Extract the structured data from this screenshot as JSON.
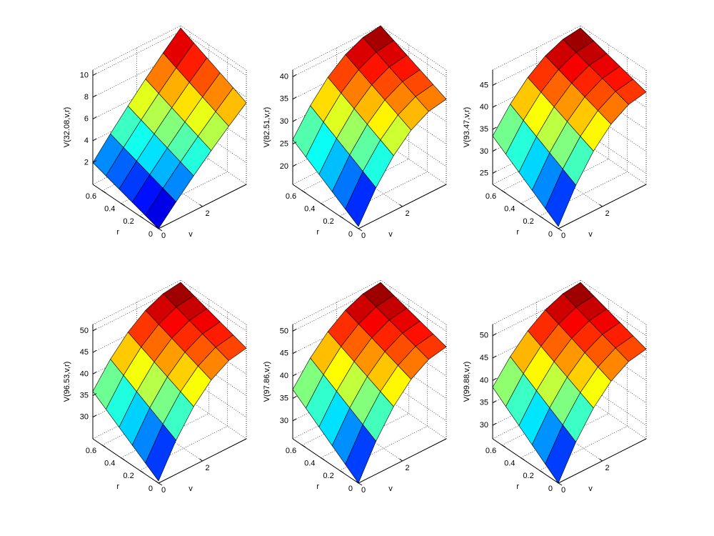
{
  "chart_data": [
    {
      "type": "surface",
      "zlabel": "V(32.08,v,r)",
      "xlabel": "v",
      "ylabel": "r",
      "colormap": "jet",
      "edgecolor": "#000000",
      "grid": true,
      "x": [
        0,
        0.8,
        1.6,
        2.4,
        3.2,
        4.0
      ],
      "y": [
        0,
        0.14,
        0.28,
        0.42,
        0.56,
        0.7
      ],
      "z": [
        [
          0,
          1.65,
          3.23,
          4.73,
          6.15,
          7.5
        ],
        [
          0.4,
          2.09,
          3.69,
          5.23,
          6.68,
          8.06
        ],
        [
          0.8,
          2.52,
          4.16,
          5.73,
          7.21,
          8.62
        ],
        [
          1.2,
          2.96,
          4.63,
          6.23,
          7.74,
          9.18
        ],
        [
          1.6,
          3.39,
          5.1,
          6.73,
          8.27,
          9.74
        ],
        [
          2,
          3.83,
          5.57,
          7.23,
          8.81,
          10.3
        ]
      ],
      "xlim": [
        0,
        4
      ],
      "ylim": [
        0,
        0.7
      ],
      "zlim": [
        0,
        10.5
      ],
      "xticks": [
        0,
        2
      ],
      "yticks": [
        0,
        0.2,
        0.4,
        0.6
      ],
      "zticks": [
        2,
        4,
        6,
        8,
        10
      ]
    },
    {
      "type": "surface",
      "zlabel": "V(82.51,v,r)",
      "xlabel": "v",
      "ylabel": "r",
      "colormap": "jet",
      "edgecolor": "#000000",
      "grid": true,
      "x": [
        0,
        0.8,
        1.6,
        2.4,
        3.2,
        4.0
      ],
      "y": [
        0,
        0.14,
        0.28,
        0.42,
        0.56,
        0.7
      ],
      "z": [
        [
          16.5,
          23.16,
          28.34,
          32.04,
          34.26,
          35
        ],
        [
          18.4,
          24.84,
          29.86,
          33.44,
          35.58,
          36.3
        ],
        [
          20.3,
          26.53,
          31.37,
          34.83,
          36.91,
          37.6
        ],
        [
          22.2,
          28.21,
          32.89,
          36.23,
          38.23,
          38.9
        ],
        [
          24.1,
          29.9,
          34.4,
          37.62,
          39.56,
          40.2
        ],
        [
          26,
          31.58,
          35.92,
          39.02,
          40.88,
          41.5
        ]
      ],
      "xlim": [
        0,
        4
      ],
      "ylim": [
        0,
        0.7
      ],
      "zlim": [
        16,
        41.5
      ],
      "xticks": [
        0,
        2
      ],
      "yticks": [
        0,
        0.2,
        0.4,
        0.6
      ],
      "zticks": [
        20,
        25,
        30,
        35,
        40
      ]
    },
    {
      "type": "surface",
      "zlabel": "V(93.47,v,r)",
      "xlabel": "v",
      "ylabel": "r",
      "colormap": "jet",
      "edgecolor": "#000000",
      "grid": true,
      "x": [
        0,
        0.8,
        1.6,
        2.4,
        3.2,
        4.0
      ],
      "y": [
        0,
        0.14,
        0.28,
        0.42,
        0.56,
        0.7
      ],
      "z": [
        [
          23,
          30.38,
          36.12,
          40.22,
          42.68,
          43.5
        ],
        [
          25.1,
          32.05,
          37.45,
          41.31,
          43.63,
          44.4
        ],
        [
          27.2,
          33.72,
          38.78,
          42.4,
          44.58,
          45.3
        ],
        [
          29.3,
          35.38,
          40.12,
          43.5,
          45.52,
          46.2
        ],
        [
          31.4,
          37.05,
          41.45,
          44.59,
          46.47,
          47.1
        ],
        [
          33.5,
          38.72,
          42.78,
          45.68,
          47.42,
          48
        ]
      ],
      "xlim": [
        0,
        4
      ],
      "ylim": [
        0,
        0.7
      ],
      "zlim": [
        22.5,
        48.5
      ],
      "xticks": [
        0,
        2
      ],
      "yticks": [
        0,
        0.2,
        0.4,
        0.6
      ],
      "zticks": [
        25,
        30,
        35,
        40,
        45
      ]
    },
    {
      "type": "surface",
      "zlabel": "V(96.53,v,r)",
      "xlabel": "v",
      "ylabel": "r",
      "colormap": "jet",
      "edgecolor": "#000000",
      "grid": true,
      "x": [
        0,
        0.8,
        1.6,
        2.4,
        3.2,
        4.0
      ],
      "y": [
        0,
        0.14,
        0.28,
        0.42,
        0.56,
        0.7
      ],
      "z": [
        [
          25.5,
          32.88,
          38.62,
          42.72,
          45.18,
          46
        ],
        [
          27.6,
          34.58,
          40.02,
          43.9,
          46.22,
          47
        ],
        [
          29.7,
          36.29,
          41.41,
          45.07,
          47.27,
          48
        ],
        [
          31.8,
          37.99,
          42.81,
          46.25,
          48.31,
          49
        ],
        [
          33.9,
          39.7,
          44.2,
          47.42,
          49.36,
          50
        ],
        [
          36,
          41.4,
          45.6,
          48.6,
          50.4,
          51
        ]
      ],
      "xlim": [
        0,
        4
      ],
      "ylim": [
        0,
        0.7
      ],
      "zlim": [
        25,
        51.5
      ],
      "xticks": [
        0,
        2
      ],
      "yticks": [
        0,
        0.2,
        0.4,
        0.6
      ],
      "zticks": [
        30,
        35,
        40,
        45,
        50
      ]
    },
    {
      "type": "surface",
      "zlabel": "V(97.86,v,r)",
      "xlabel": "v",
      "ylabel": "r",
      "colormap": "jet",
      "edgecolor": "#000000",
      "grid": true,
      "x": [
        0,
        0.8,
        1.6,
        2.4,
        3.2,
        4.0
      ],
      "y": [
        0,
        0.14,
        0.28,
        0.42,
        0.56,
        0.7
      ],
      "z": [
        [
          26,
          33.38,
          39.12,
          43.22,
          45.68,
          46.5
        ],
        [
          28.2,
          35.11,
          40.49,
          44.33,
          46.63,
          47.4
        ],
        [
          30.4,
          36.84,
          41.86,
          45.44,
          47.58,
          48.3
        ],
        [
          32.6,
          38.58,
          43.22,
          46.54,
          48.54,
          49.2
        ],
        [
          34.8,
          40.31,
          44.59,
          47.65,
          49.49,
          50.1
        ],
        [
          37,
          42.04,
          45.96,
          48.76,
          50.44,
          51
        ]
      ],
      "xlim": [
        0,
        4
      ],
      "ylim": [
        0,
        0.7
      ],
      "zlim": [
        26,
        51.5
      ],
      "xticks": [
        0,
        2
      ],
      "yticks": [
        0,
        0.2,
        0.4,
        0.6
      ],
      "zticks": [
        30,
        35,
        40,
        45,
        50
      ]
    },
    {
      "type": "surface",
      "zlabel": "V(99.88,v,r)",
      "xlabel": "v",
      "ylabel": "r",
      "colormap": "jet",
      "edgecolor": "#000000",
      "grid": true,
      "x": [
        0,
        0.8,
        1.6,
        2.4,
        3.2,
        4.0
      ],
      "y": [
        0,
        0.14,
        0.28,
        0.42,
        0.56,
        0.7
      ],
      "z": [
        [
          27,
          34.2,
          39.8,
          43.8,
          46.2,
          47
        ],
        [
          29.3,
          36.03,
          41.27,
          45.01,
          47.25,
          48
        ],
        [
          31.6,
          37.86,
          42.74,
          46.22,
          48.3,
          49
        ],
        [
          33.9,
          39.7,
          44.2,
          47.42,
          49.36,
          50
        ],
        [
          36.2,
          41.53,
          45.67,
          48.63,
          50.41,
          51
        ],
        [
          38.5,
          43.36,
          47.14,
          49.84,
          51.46,
          52
        ]
      ],
      "xlim": [
        0,
        4
      ],
      "ylim": [
        0,
        0.7
      ],
      "zlim": [
        27,
        52.5
      ],
      "xticks": [
        0,
        2
      ],
      "yticks": [
        0,
        0.2,
        0.4,
        0.6
      ],
      "zticks": [
        30,
        35,
        40,
        45,
        50
      ]
    }
  ]
}
